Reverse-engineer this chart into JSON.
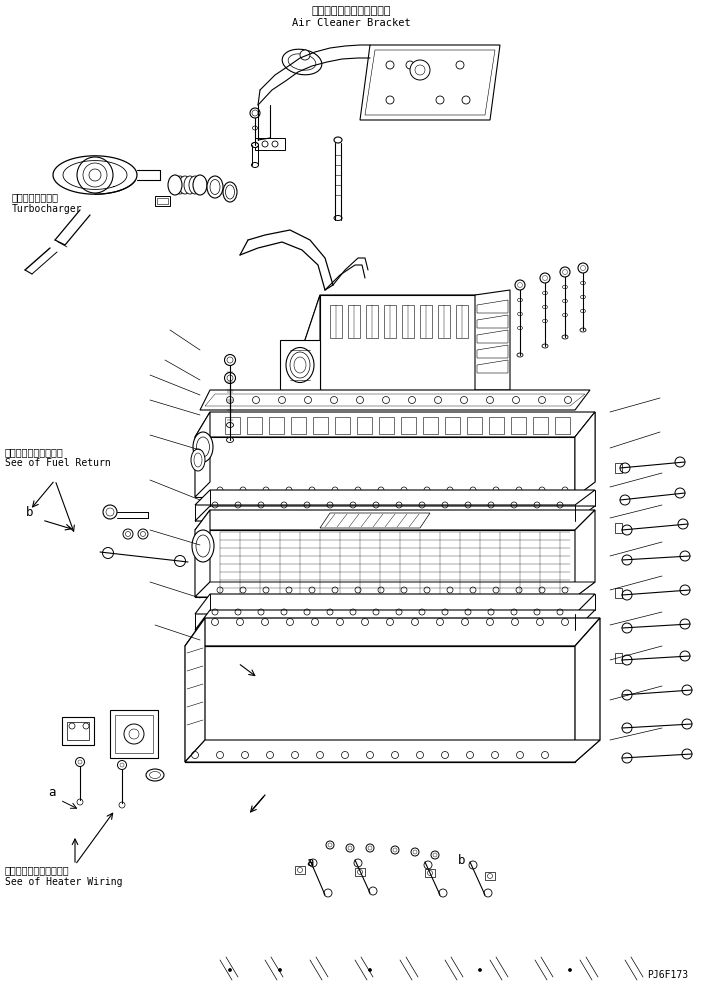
{
  "title_jp": "エアークリーナブラケット",
  "title_en": "Air Cleaner Bracket",
  "label_turbo_jp": "ターボチャージャ",
  "label_turbo_en": "Turbocharger",
  "label_fuel_jp": "フェエルリターン参照",
  "label_fuel_en": "See of Fuel Return",
  "label_heater_jp": "ヒータワイヤリング参照",
  "label_heater_en": "See of Heater Wiring",
  "label_a1": "a",
  "label_b1": "b",
  "label_a2": "a",
  "label_b2": "b",
  "part_number": "PJ6F173",
  "bg_color": "#ffffff",
  "line_color": "#000000",
  "text_color": "#000000",
  "figsize": [
    7.02,
    9.85
  ],
  "dpi": 100
}
